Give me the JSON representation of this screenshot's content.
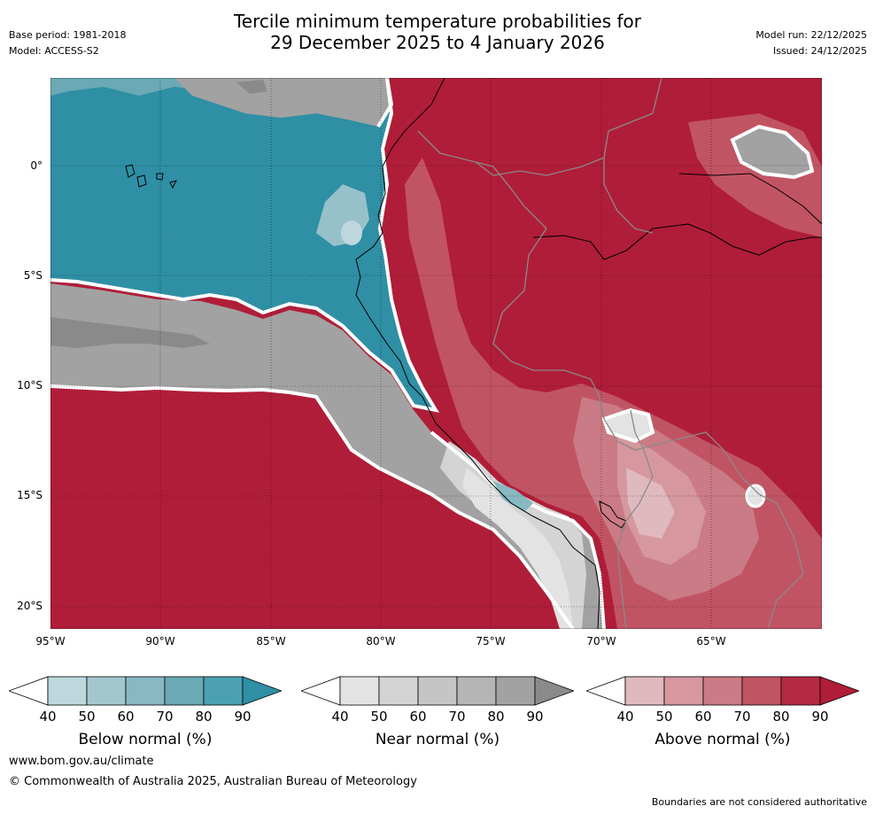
{
  "header": {
    "title_line1": "Tercile minimum temperature probabilities for",
    "title_line2": "29 December 2025 to 4 January 2026",
    "base_period": "Base period: 1981-2018",
    "model": "Model: ACCESS-S2",
    "model_run": "Model run: 22/12/2025",
    "issued": "Issued: 24/12/2025"
  },
  "axes": {
    "lat_labels": [
      "0°",
      "5°S",
      "10°S",
      "15°S",
      "20°S"
    ],
    "lon_labels": [
      "95°W",
      "90°W",
      "85°W",
      "80°W",
      "75°W",
      "70°W",
      "65°W"
    ]
  },
  "legend": {
    "ticks": [
      "40",
      "50",
      "60",
      "70",
      "80",
      "90"
    ],
    "below": {
      "label": "Below normal (%)",
      "colors": [
        "#ffffff",
        "#bdd7dd",
        "#a3c7ce",
        "#88b8c2",
        "#6aa9b5",
        "#4aa0b1",
        "#2f8fa4"
      ]
    },
    "near": {
      "label": "Near normal (%)",
      "colors": [
        "#ffffff",
        "#e3e3e3",
        "#d4d4d4",
        "#c5c5c5",
        "#b5b5b5",
        "#a2a2a2",
        "#8a8a8a"
      ]
    },
    "above": {
      "label": "Above normal (%)",
      "colors": [
        "#ffffff",
        "#e0b9bf",
        "#d6979f",
        "#ca7b85",
        "#c15463",
        "#b52a42",
        "#b01d38"
      ]
    }
  },
  "footer": {
    "website": "www.bom.gov.au/climate",
    "copyright": "© Commonwealth of Australia 2025, Australian Bureau of Meteorology",
    "disclaimer": "Boundaries are not considered authoritative"
  }
}
